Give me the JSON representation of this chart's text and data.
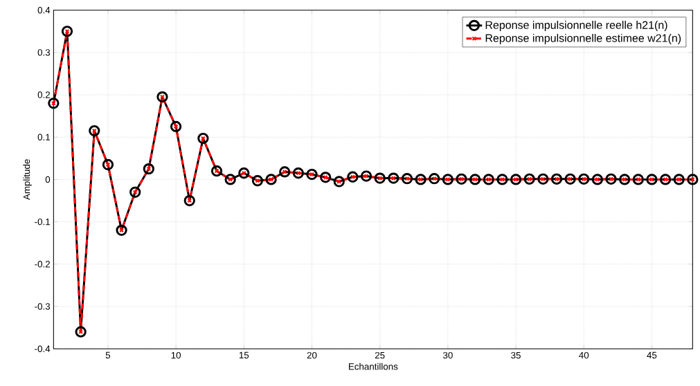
{
  "chart_data": {
    "type": "line",
    "xlabel": "Echantillons",
    "ylabel": "Amplitude",
    "x": [
      1,
      2,
      3,
      4,
      5,
      6,
      7,
      8,
      9,
      10,
      11,
      12,
      13,
      14,
      15,
      16,
      17,
      18,
      19,
      20,
      21,
      22,
      23,
      24,
      25,
      26,
      27,
      28,
      29,
      30,
      31,
      32,
      33,
      34,
      35,
      36,
      37,
      38,
      39,
      40,
      41,
      42,
      43,
      44,
      45,
      46,
      47,
      48
    ],
    "series": [
      {
        "name": "Reponse impulsionnelle reelle h21(n)",
        "color": "#000000",
        "marker": "circle",
        "line_style": "solid",
        "values": [
          0.18,
          0.35,
          -0.36,
          0.115,
          0.035,
          -0.12,
          -0.03,
          0.025,
          0.195,
          0.125,
          -0.05,
          0.097,
          0.02,
          0,
          0.015,
          -0.003,
          0,
          0.018,
          0.015,
          0.012,
          0.005,
          -0.005,
          0.006,
          0.008,
          0.003,
          0.003,
          0.002,
          0,
          0.002,
          0,
          0.001,
          0,
          0,
          0,
          0,
          0.001,
          0.001,
          0.001,
          0.001,
          0.001,
          0,
          0.001,
          0,
          0,
          0,
          0,
          0,
          0
        ]
      },
      {
        "name": "Reponse impulsionnelle estimee w21(n)",
        "color": "#ff0000",
        "marker": "cross",
        "line_style": "dashed",
        "values": [
          0.18,
          0.35,
          -0.36,
          0.115,
          0.035,
          -0.12,
          -0.03,
          0.025,
          0.195,
          0.125,
          -0.05,
          0.097,
          0.02,
          0,
          0.015,
          -0.003,
          0,
          0.018,
          0.015,
          0.012,
          0.005,
          -0.005,
          0.006,
          0.008,
          0.003,
          0.003,
          0.002,
          0,
          0.002,
          0,
          0.001,
          0,
          0,
          0,
          0,
          0.001,
          0.001,
          0.001,
          0.001,
          0.001,
          0,
          0.001,
          0,
          0,
          0,
          0,
          0,
          0
        ]
      }
    ],
    "xlim": [
      1,
      48
    ],
    "ylim": [
      -0.4,
      0.4
    ],
    "xticks": [
      5,
      10,
      15,
      20,
      25,
      30,
      35,
      40,
      45
    ],
    "yticks": [
      -0.4,
      -0.3,
      -0.2,
      -0.1,
      0,
      0.1,
      0.2,
      0.3,
      0.4
    ],
    "grid": true,
    "legend": "top right"
  }
}
